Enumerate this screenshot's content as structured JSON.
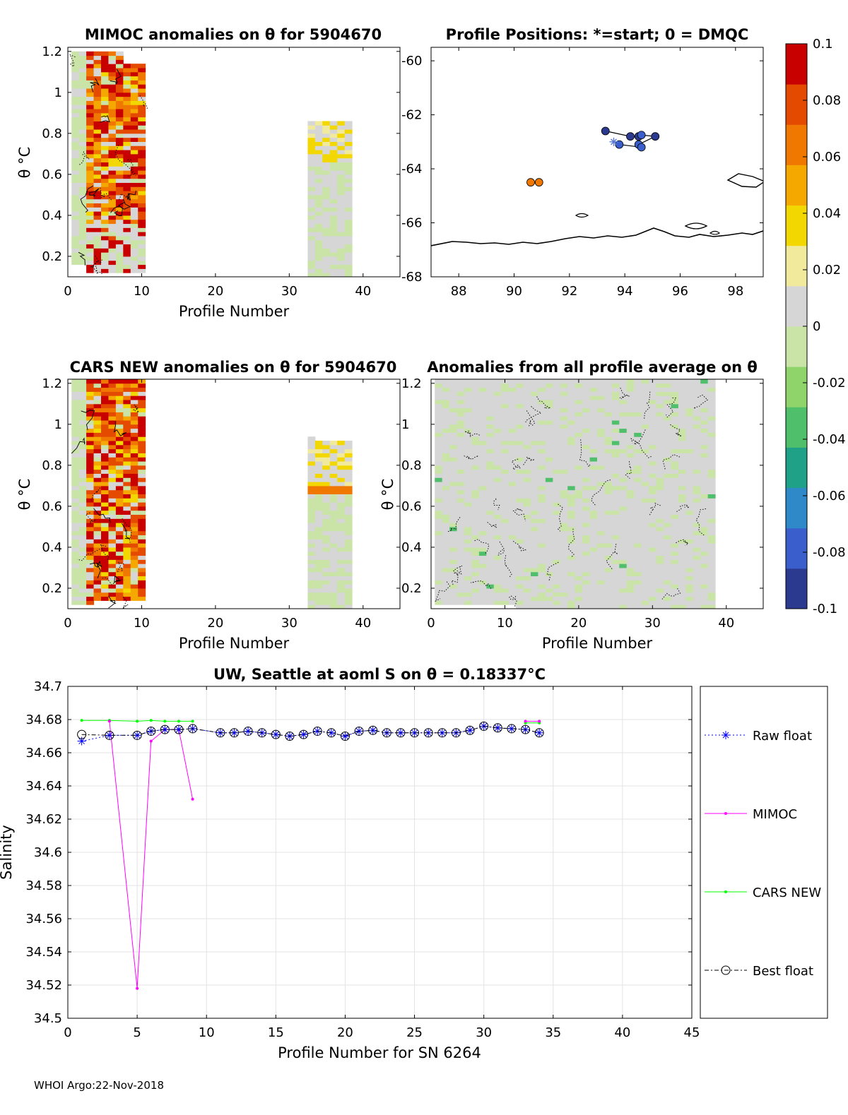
{
  "footer": "WHOI Argo:22-Nov-2018",
  "colors": {
    "raw": "#0000ff",
    "mimoc": "#ff00ff",
    "cars": "#00ff00",
    "best": "#000000",
    "neutral": "#d6d6d6",
    "colormap": [
      "#2b3a8f",
      "#3a5fcd",
      "#2f88c7",
      "#1fa187",
      "#4fbf6b",
      "#8fd36b",
      "#c9e4a6",
      "#d6d6d6",
      "#f1ea9c",
      "#f2d800",
      "#f5a800",
      "#f07800",
      "#e44a00",
      "#c80000"
    ]
  },
  "colorbar": {
    "ticks": [
      "0.1",
      "0.08",
      "0.06",
      "0.04",
      "0.02",
      "0",
      "-0.02",
      "-0.04",
      "-0.06",
      "-0.08",
      "-0.1"
    ]
  },
  "panels": {
    "mimoc": {
      "title": "MIMOC anomalies on θ  for 5904670",
      "xlabel": "Profile Number",
      "ylabel": "θ °C",
      "xticks": [
        "0",
        "10",
        "20",
        "30",
        "40"
      ],
      "yticks": [
        "1.2",
        "1",
        "0.8",
        "0.6",
        "0.4",
        "0.2"
      ]
    },
    "positions": {
      "title": "Profile Positions: *=start; 0 = DMQC",
      "xticks": [
        "88",
        "90",
        "92",
        "94",
        "96",
        "98"
      ],
      "yticks": [
        "-60",
        "-62",
        "-64",
        "-66",
        "-68"
      ]
    },
    "cars": {
      "title": "CARS NEW anomalies on θ for 5904670",
      "xlabel": "Profile Number",
      "ylabel": "θ °C",
      "xticks": [
        "0",
        "10",
        "20",
        "30",
        "40"
      ],
      "yticks": [
        "1.2",
        "1",
        "0.8",
        "0.6",
        "0.4",
        "0.2"
      ]
    },
    "allavg": {
      "title": "Anomalies from all profile average on θ",
      "xlabel": "Profile Number",
      "ylabel": "θ °C",
      "xticks": [
        "0",
        "10",
        "20",
        "30",
        "40"
      ],
      "yticks": [
        "1.2",
        "1",
        "0.8",
        "0.6",
        "0.4",
        "0.2"
      ]
    }
  },
  "chart_data": [
    {
      "type": "heatmap",
      "title": "MIMOC anomalies on θ  for 5904670",
      "xlabel": "Profile Number",
      "ylabel": "θ °C",
      "xlim": [
        0,
        45
      ],
      "ylim": [
        0.1,
        1.22
      ],
      "colorbar_range": [
        -0.1,
        0.1
      ],
      "profile_ranges": [
        [
          1,
          10
        ],
        [
          33,
          38
        ]
      ]
    },
    {
      "type": "scatter",
      "title": "Profile Positions: *=start; 0 = DMQC",
      "xlim": [
        87,
        99
      ],
      "ylim": [
        -68,
        -59.5
      ],
      "points": [
        {
          "lon": 93.3,
          "lat": -62.6,
          "value": -0.1
        },
        {
          "lon": 94.2,
          "lat": -62.8,
          "value": -0.1
        },
        {
          "lon": 94.5,
          "lat": -62.8,
          "value": -0.1
        },
        {
          "lon": 94.6,
          "lat": -62.75,
          "value": -0.09
        },
        {
          "lon": 95.1,
          "lat": -62.8,
          "value": -0.1
        },
        {
          "lon": 94.5,
          "lat": -63.1,
          "value": -0.09
        },
        {
          "lon": 94.6,
          "lat": -63.2,
          "value": -0.09
        },
        {
          "lon": 93.8,
          "lat": -63.1,
          "value": -0.08
        },
        {
          "lon": 90.6,
          "lat": -64.5,
          "value": 0.07
        },
        {
          "lon": 90.9,
          "lat": -64.5,
          "value": 0.07
        }
      ],
      "start": {
        "lon": 93.6,
        "lat": -63.0
      }
    },
    {
      "type": "heatmap",
      "title": "CARS NEW anomalies on θ for 5904670",
      "xlabel": "Profile Number",
      "ylabel": "θ °C",
      "xlim": [
        0,
        45
      ],
      "ylim": [
        0.1,
        1.22
      ],
      "colorbar_range": [
        -0.1,
        0.1
      ],
      "profile_ranges": [
        [
          1,
          10
        ],
        [
          33,
          38
        ]
      ]
    },
    {
      "type": "heatmap",
      "title": "Anomalies from all profile average on θ",
      "xlabel": "Profile Number",
      "ylabel": "θ °C",
      "xlim": [
        0,
        45
      ],
      "ylim": [
        0.1,
        1.22
      ],
      "colorbar_range": [
        -0.1,
        0.1
      ],
      "profile_ranges": [
        [
          1,
          38
        ]
      ]
    },
    {
      "type": "line",
      "title": "UW, Seattle at aoml S on θ = 0.18337°C",
      "xlabel": "Profile Number for SN 6264",
      "ylabel": "Salinity",
      "xlim": [
        0,
        45
      ],
      "ylim": [
        34.5,
        34.7
      ],
      "xticks": [
        "0",
        "5",
        "10",
        "15",
        "20",
        "25",
        "30",
        "35",
        "40",
        "45"
      ],
      "yticks": [
        "34.7",
        "34.68",
        "34.66",
        "34.64",
        "34.62",
        "34.6",
        "34.58",
        "34.56",
        "34.54",
        "34.52",
        "34.5"
      ],
      "series": [
        {
          "name": "Raw float",
          "x": [
            1,
            3,
            5,
            6,
            7,
            8,
            9,
            11,
            12,
            13,
            14,
            15,
            16,
            17,
            18,
            19,
            20,
            21,
            22,
            23,
            24,
            25,
            26,
            27,
            28,
            29,
            30,
            31,
            32,
            33,
            34
          ],
          "y": [
            34.667,
            34.6705,
            34.6705,
            34.673,
            34.674,
            34.674,
            34.6745,
            34.672,
            34.672,
            34.673,
            34.672,
            34.671,
            34.67,
            34.671,
            34.673,
            34.672,
            34.67,
            34.673,
            34.6735,
            34.672,
            34.672,
            34.672,
            34.672,
            34.672,
            34.672,
            34.6735,
            34.676,
            34.675,
            34.6745,
            34.674,
            34.672
          ]
        },
        {
          "name": "MIMOC",
          "x": [
            3,
            5,
            6,
            7,
            8,
            9,
            null,
            33,
            34
          ],
          "y": [
            34.679,
            34.518,
            34.667,
            34.674,
            34.674,
            34.632,
            null,
            34.679,
            34.679
          ]
        },
        {
          "name": "CARS NEW",
          "x": [
            1,
            3,
            5,
            6,
            7,
            8,
            9,
            null,
            33,
            34
          ],
          "y": [
            34.6795,
            34.6795,
            34.679,
            34.6795,
            34.679,
            34.679,
            34.679,
            null,
            34.678,
            34.678
          ]
        },
        {
          "name": "Best float",
          "x": [
            1,
            3,
            5,
            6,
            7,
            8,
            9,
            11,
            12,
            13,
            14,
            15,
            16,
            17,
            18,
            19,
            20,
            21,
            22,
            23,
            24,
            25,
            26,
            27,
            28,
            29,
            30,
            31,
            32,
            33,
            34
          ],
          "y": [
            34.671,
            34.6705,
            34.6705,
            34.673,
            34.674,
            34.674,
            34.6745,
            34.672,
            34.672,
            34.673,
            34.672,
            34.671,
            34.67,
            34.671,
            34.673,
            34.672,
            34.67,
            34.673,
            34.6735,
            34.672,
            34.672,
            34.672,
            34.672,
            34.672,
            34.672,
            34.6735,
            34.676,
            34.675,
            34.6745,
            34.674,
            34.672
          ]
        }
      ]
    }
  ]
}
